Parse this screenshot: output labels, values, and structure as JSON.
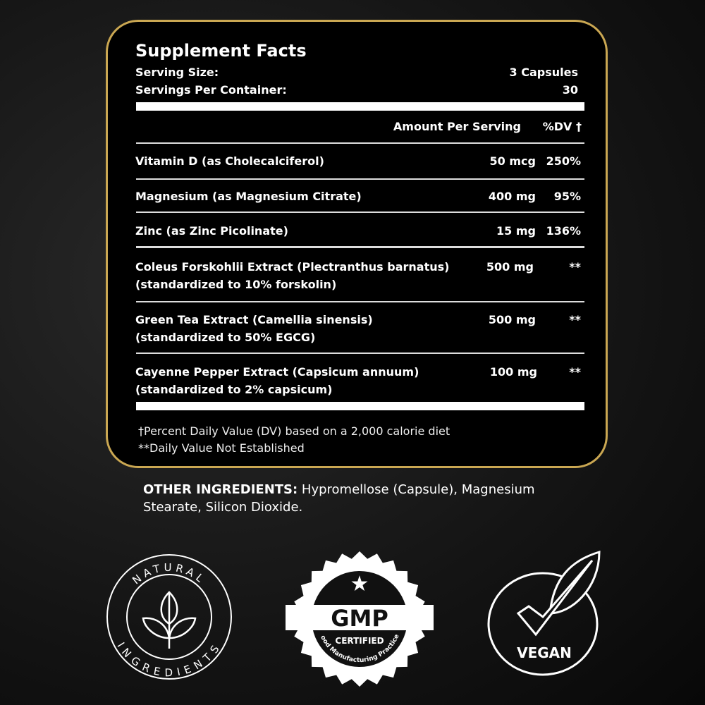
{
  "title": "Supplement Facts",
  "serving_size_label": "Serving Size:",
  "serving_size": "3 Capsules",
  "servings_label": "Servings Per Container:",
  "servings": "30",
  "amount_header": "Amount Per Serving",
  "dv_header": "%DV †",
  "rows": [
    {
      "name": "Vitamin D (as Cholecalciferol)",
      "amount": "50 mcg",
      "dv": "250%"
    },
    {
      "name": "Magnesium (as Magnesium Citrate)",
      "amount": "400 mg",
      "dv": "95%"
    },
    {
      "name": "Zinc (as Zinc Picolinate)",
      "amount": "15 mg",
      "dv": "136%"
    },
    {
      "name": "Coleus Forskohlii Extract (Plectranthus barnatus)",
      "sub": "(standardized to 10% forskolin)",
      "amount": "500 mg",
      "dv": "**"
    },
    {
      "name": "Green Tea Extract (Camellia sinensis)",
      "sub": "(standardized to 50% EGCG)",
      "amount": "500 mg",
      "dv": "**"
    },
    {
      "name": "Cayenne Pepper Extract (Capsicum annuum)",
      "sub": "(standardized to 2% capsicum)",
      "amount": "100 mg",
      "dv": "**"
    }
  ],
  "footnote1": "†Percent Daily Value (DV) based on a 2,000 calorie diet",
  "footnote2": "**Daily Value Not Established",
  "other_label": "OTHER INGREDIENTS:",
  "other_text": " Hypromellose (Capsule), Magnesium",
  "other_text2": "Stearate, Silicon Dioxide.",
  "badges": {
    "natural_top": "NATURAL",
    "natural_bottom": "INGREDIENTS",
    "gmp": "GMP",
    "certified": "CERTIFIED",
    "gmp_arc": "Good Manufacturing Practices",
    "vegan": "VEGAN"
  },
  "colors": {
    "border": "#caa752",
    "background": "#141414"
  }
}
